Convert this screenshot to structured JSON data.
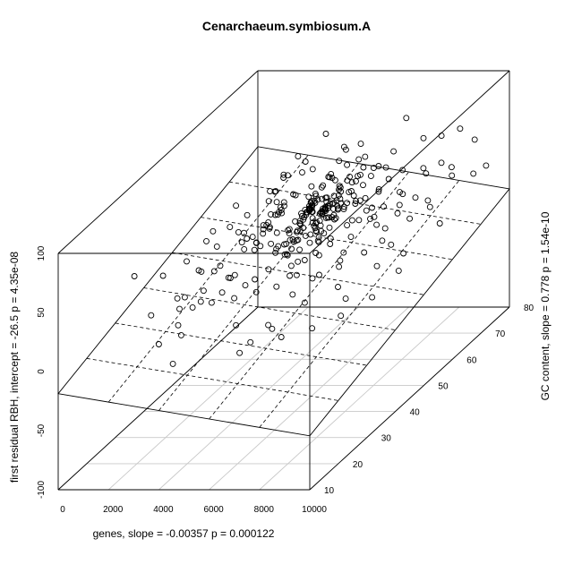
{
  "chart_data": {
    "type": "scatter",
    "title": "Cenarchaeum.symbiosum.A",
    "xlabel": "genes, slope =  -0.00357 p =  0.000122",
    "ylabel": "GC content, slope =  0.778 p =  1.54e-10",
    "zlabel": "first residual RBH, intercept =  -26.5 p =  4.35e-08",
    "xlim": [
      0,
      10000
    ],
    "ylim": [
      10,
      80
    ],
    "zlim": [
      -100,
      100
    ],
    "x_ticks": [
      "0",
      "2000",
      "4000",
      "6000",
      "8000",
      "10000"
    ],
    "y_ticks": [
      "10",
      "20",
      "30",
      "40",
      "50",
      "60",
      "70",
      "80"
    ],
    "z_ticks": [
      "-100",
      "-50",
      "0",
      "50",
      "100"
    ],
    "regression_plane": {
      "intercept": -26.5,
      "x_slope": -0.00357,
      "y_slope": 0.778
    },
    "grid": true,
    "points": [
      [
        1041,
        51,
        -6
      ],
      [
        9186,
        79,
        22
      ],
      [
        1553,
        23,
        52
      ],
      [
        982,
        57,
        2
      ],
      [
        879,
        39,
        17
      ],
      [
        6398,
        59,
        20
      ],
      [
        7005,
        69,
        20
      ],
      [
        1895,
        48,
        1
      ],
      [
        2826,
        47,
        0
      ],
      [
        6484,
        35,
        10
      ],
      [
        2526,
        37,
        26
      ],
      [
        4451,
        72,
        38
      ],
      [
        4134,
        65,
        -23
      ],
      [
        9301,
        38,
        1
      ],
      [
        2914,
        71,
        43
      ],
      [
        3904,
        68,
        18
      ],
      [
        8059,
        37,
        12
      ],
      [
        2858,
        45,
        45
      ],
      [
        6129,
        64,
        17
      ],
      [
        4604,
        68,
        29
      ],
      [
        6153,
        57,
        20
      ],
      [
        7101,
        21,
        15
      ],
      [
        3767,
        62,
        19
      ],
      [
        997,
        43,
        -11
      ],
      [
        1596,
        75,
        23
      ],
      [
        8128,
        58,
        35
      ],
      [
        2776,
        43,
        -6
      ],
      [
        4728,
        76,
        1
      ],
      [
        8281,
        58,
        -6
      ],
      [
        1706,
        40,
        27
      ],
      [
        3826,
        36,
        22
      ],
      [
        5452,
        46,
        32
      ],
      [
        6195,
        58,
        8
      ],
      [
        8315,
        71,
        42
      ],
      [
        3302,
        58,
        0
      ],
      [
        3051,
        55,
        21
      ],
      [
        9187,
        67,
        40
      ],
      [
        3409,
        63,
        10
      ],
      [
        5036,
        35,
        12
      ],
      [
        4564,
        52,
        19
      ],
      [
        2932,
        78,
        51
      ],
      [
        5262,
        50,
        6
      ],
      [
        5932,
        53,
        13
      ],
      [
        5048,
        60,
        20
      ],
      [
        1875,
        68,
        5
      ],
      [
        1923,
        45,
        33
      ],
      [
        6398,
        52,
        -4
      ],
      [
        6059,
        69,
        24
      ],
      [
        8076,
        64,
        28
      ],
      [
        2451,
        65,
        22
      ],
      [
        8128,
        55,
        8
      ],
      [
        7549,
        57,
        7
      ],
      [
        4059,
        43,
        30
      ],
      [
        4601,
        33,
        -35
      ],
      [
        2744,
        51,
        13
      ],
      [
        2946,
        63,
        47
      ],
      [
        6092,
        43,
        42
      ],
      [
        5046,
        61,
        0
      ],
      [
        4578,
        75,
        36
      ],
      [
        1823,
        78,
        32
      ],
      [
        3902,
        58,
        44
      ],
      [
        6316,
        75,
        27
      ],
      [
        5633,
        70,
        33
      ],
      [
        3467,
        54,
        11
      ],
      [
        8303,
        60,
        19
      ],
      [
        2958,
        58,
        15
      ],
      [
        3707,
        39,
        -2
      ],
      [
        4722,
        65,
        11
      ],
      [
        6244,
        58,
        22
      ],
      [
        1960,
        47,
        37
      ],
      [
        2549,
        68,
        38
      ],
      [
        5211,
        44,
        33
      ],
      [
        4633,
        40,
        40
      ],
      [
        3788,
        65,
        16
      ],
      [
        2858,
        48,
        34
      ],
      [
        5707,
        72,
        37
      ],
      [
        7373,
        73,
        33
      ],
      [
        6099,
        67,
        5
      ],
      [
        6458,
        72,
        -3
      ],
      [
        3934,
        60,
        15
      ],
      [
        2849,
        28,
        -9
      ],
      [
        4109,
        52,
        44
      ],
      [
        5306,
        66,
        29
      ],
      [
        5347,
        44,
        6
      ],
      [
        8040,
        77,
        25
      ],
      [
        4224,
        73,
        51
      ],
      [
        1925,
        69,
        22
      ],
      [
        3418,
        45,
        40
      ],
      [
        2426,
        33,
        12
      ],
      [
        4651,
        53,
        -2
      ],
      [
        1939,
        40,
        -12
      ],
      [
        4316,
        62,
        28
      ],
      [
        5111,
        56,
        9
      ],
      [
        4545,
        76,
        47
      ],
      [
        4149,
        39,
        9
      ],
      [
        3859,
        72,
        27
      ],
      [
        8091,
        69,
        9
      ],
      [
        3769,
        56,
        6
      ],
      [
        6221,
        62,
        43
      ],
      [
        7101,
        59,
        16
      ],
      [
        7113,
        67,
        26
      ],
      [
        3919,
        62,
        22
      ],
      [
        6023,
        52,
        29
      ],
      [
        8269,
        66,
        44
      ],
      [
        2830,
        36,
        11
      ],
      [
        4585,
        49,
        13
      ],
      [
        4287,
        65,
        36
      ],
      [
        5147,
        56,
        8
      ],
      [
        3957,
        61,
        9
      ],
      [
        5120,
        58,
        11
      ],
      [
        4758,
        67,
        30
      ],
      [
        3661,
        59,
        3
      ],
      [
        3434,
        56,
        51
      ],
      [
        4218,
        62,
        15
      ],
      [
        5082,
        62,
        14
      ],
      [
        4578,
        61,
        1
      ],
      [
        3701,
        66,
        19
      ],
      [
        3987,
        55,
        0
      ],
      [
        3962,
        53,
        44
      ],
      [
        5287,
        47,
        0
      ],
      [
        1794,
        51,
        -1
      ],
      [
        5286,
        74,
        31
      ],
      [
        4011,
        35,
        24
      ],
      [
        6047,
        69,
        22
      ],
      [
        8039,
        80,
        51
      ],
      [
        6281,
        64,
        10
      ],
      [
        2929,
        72,
        11
      ],
      [
        7155,
        61,
        27
      ],
      [
        2976,
        50,
        44
      ],
      [
        2637,
        61,
        40
      ],
      [
        6124,
        66,
        15
      ],
      [
        7151,
        75,
        54
      ],
      [
        4716,
        76,
        36
      ],
      [
        5184,
        46,
        10
      ],
      [
        3702,
        73,
        28
      ],
      [
        4649,
        76,
        27
      ],
      [
        2745,
        69,
        19
      ],
      [
        2549,
        57,
        5
      ],
      [
        3710,
        51,
        -4
      ],
      [
        3745,
        58,
        11
      ],
      [
        6076,
        74,
        45
      ],
      [
        8008,
        54,
        24
      ],
      [
        3955,
        60,
        9
      ],
      [
        6114,
        71,
        38
      ],
      [
        3961,
        44,
        3
      ],
      [
        4474,
        69,
        48
      ],
      [
        2861,
        74,
        30
      ],
      [
        3591,
        55,
        18
      ],
      [
        3823,
        71,
        30
      ],
      [
        6111,
        72,
        26
      ],
      [
        5231,
        68,
        14
      ],
      [
        7149,
        47,
        19
      ],
      [
        3720,
        66,
        33
      ],
      [
        5290,
        67,
        23
      ],
      [
        3867,
        70,
        11
      ],
      [
        4689,
        59,
        11
      ],
      [
        5066,
        55,
        24
      ],
      [
        5254,
        59,
        34
      ],
      [
        4545,
        60,
        11
      ],
      [
        5000,
        62,
        27
      ],
      [
        5105,
        68,
        32
      ],
      [
        5208,
        70,
        34
      ],
      [
        6107,
        62,
        30
      ],
      [
        2829,
        57,
        20
      ],
      [
        4040,
        57,
        6
      ],
      [
        3997,
        61,
        18
      ],
      [
        3983,
        70,
        32
      ],
      [
        4014,
        67,
        30
      ],
      [
        2865,
        64,
        21
      ],
      [
        4620,
        63,
        30
      ],
      [
        4559,
        58,
        3
      ],
      [
        2854,
        53,
        19
      ],
      [
        3973,
        66,
        22
      ],
      [
        3957,
        76,
        42
      ],
      [
        3977,
        74,
        11
      ],
      [
        3944,
        57,
        0
      ],
      [
        3918,
        64,
        24
      ],
      [
        3961,
        64,
        16
      ],
      [
        4046,
        58,
        12
      ],
      [
        3918,
        56,
        18
      ],
      [
        4105,
        63,
        9
      ],
      [
        3901,
        66,
        25
      ],
      [
        5124,
        57,
        15
      ],
      [
        4556,
        64,
        28
      ],
      [
        4623,
        62,
        23
      ],
      [
        4587,
        58,
        10
      ],
      [
        4616,
        61,
        15
      ],
      [
        3908,
        52,
        11
      ],
      [
        4606,
        67,
        19
      ],
      [
        4575,
        71,
        27
      ],
      [
        4691,
        73,
        22
      ],
      [
        4602,
        53,
        16
      ],
      [
        4606,
        54,
        6
      ],
      [
        5127,
        65,
        18
      ],
      [
        2889,
        54,
        12
      ],
      [
        2895,
        70,
        36
      ],
      [
        5162,
        61,
        25
      ],
      [
        2797,
        59,
        18
      ],
      [
        5097,
        60,
        20
      ],
      [
        5140,
        62,
        15
      ],
      [
        2849,
        51,
        22
      ],
      [
        5172,
        55,
        19
      ],
      [
        5083,
        64,
        27
      ],
      [
        3985,
        51,
        10
      ],
      [
        3980,
        72,
        25
      ],
      [
        3942,
        60,
        17
      ],
      [
        2875,
        63,
        17
      ],
      [
        5143,
        69,
        14
      ],
      [
        5133,
        55,
        1
      ],
      [
        4649,
        61,
        11
      ],
      [
        4573,
        68,
        21
      ],
      [
        4604,
        66,
        19
      ],
      [
        2815,
        59,
        36
      ],
      [
        4583,
        50,
        10
      ],
      [
        4641,
        63,
        13
      ],
      [
        4620,
        63,
        19
      ],
      [
        4557,
        72,
        28
      ],
      [
        2839,
        58,
        18
      ],
      [
        5090,
        63,
        23
      ],
      [
        4615,
        61,
        21
      ],
      [
        3956,
        64,
        19
      ],
      [
        5131,
        66,
        19
      ],
      [
        2810,
        57,
        13
      ],
      [
        3991,
        65,
        29
      ],
      [
        3911,
        61,
        19
      ],
      [
        5116,
        65,
        16
      ],
      [
        4585,
        68,
        26
      ],
      [
        4660,
        61,
        22
      ],
      [
        5106,
        70,
        33
      ],
      [
        3962,
        59,
        11
      ],
      [
        2831,
        62,
        18
      ],
      [
        3976,
        56,
        19
      ],
      [
        4570,
        60,
        15
      ],
      [
        3987,
        64,
        16
      ],
      [
        4604,
        63,
        20
      ],
      [
        4605,
        63,
        22
      ],
      [
        4615,
        66,
        25
      ],
      [
        4593,
        62,
        18
      ],
      [
        4603,
        64,
        21
      ],
      [
        5114,
        63,
        20
      ],
      [
        2856,
        59,
        14
      ],
      [
        3968,
        64,
        25
      ],
      [
        2848,
        61,
        20
      ],
      [
        4597,
        60,
        16
      ],
      [
        3961,
        63,
        20
      ],
      [
        3958,
        62,
        18
      ],
      [
        3963,
        61,
        16
      ],
      [
        5103,
        61,
        18
      ],
      [
        3952,
        65,
        23
      ],
      [
        5094,
        67,
        26
      ],
      [
        3988,
        62,
        20
      ],
      [
        2876,
        62,
        20
      ],
      [
        4601,
        64,
        19
      ],
      [
        3970,
        60,
        14
      ],
      [
        4011,
        62,
        20
      ],
      [
        4592,
        62,
        21
      ],
      [
        3969,
        63,
        23
      ],
      [
        5110,
        63,
        21
      ],
      [
        3977,
        63,
        19
      ],
      [
        3979,
        64,
        21
      ],
      [
        4606,
        62,
        19
      ],
      [
        4610,
        63,
        21
      ],
      [
        3976,
        63,
        21
      ],
      [
        2858,
        64,
        24
      ],
      [
        5114,
        64,
        23
      ],
      [
        4602,
        63,
        20
      ],
      [
        3974,
        62,
        20
      ],
      [
        4604,
        62,
        20
      ],
      [
        3976,
        64,
        22
      ],
      [
        3978,
        63,
        20
      ],
      [
        4606,
        63,
        20
      ],
      [
        3977,
        63,
        21
      ],
      [
        4603,
        64,
        21
      ],
      [
        3975,
        63,
        20
      ],
      [
        4604,
        63,
        21
      ],
      [
        3976,
        63,
        21
      ],
      [
        4605,
        63,
        20
      ],
      [
        3978,
        63,
        21
      ],
      [
        2500,
        30,
        -5
      ],
      [
        6800,
        25,
        3
      ],
      [
        7600,
        32,
        -12
      ],
      [
        9000,
        50,
        -3
      ],
      [
        8700,
        45,
        12
      ],
      [
        6400,
        40,
        -8
      ],
      [
        3200,
        22,
        -20
      ],
      [
        2100,
        34,
        0
      ],
      [
        5600,
        28,
        -15
      ],
      [
        7800,
        42,
        -9
      ],
      [
        9500,
        60,
        15
      ],
      [
        3400,
        30,
        15
      ],
      [
        1400,
        60,
        30
      ],
      [
        6600,
        30,
        -15
      ],
      [
        8400,
        35,
        -8
      ],
      [
        7200,
        38,
        20
      ],
      [
        5800,
        48,
        -5
      ],
      [
        2300,
        25,
        -10
      ],
      [
        1200,
        32,
        -1
      ],
      [
        4800,
        30,
        -5
      ],
      [
        5500,
        38,
        10
      ],
      [
        7400,
        52,
        8
      ],
      [
        9700,
        70,
        35
      ],
      [
        6900,
        48,
        10
      ],
      [
        8800,
        62,
        30
      ],
      [
        5900,
        80,
        60
      ],
      [
        7300,
        80,
        45
      ],
      [
        2200,
        55,
        10
      ],
      [
        2700,
        40,
        -8
      ],
      [
        9300,
        74,
        55
      ]
    ]
  }
}
